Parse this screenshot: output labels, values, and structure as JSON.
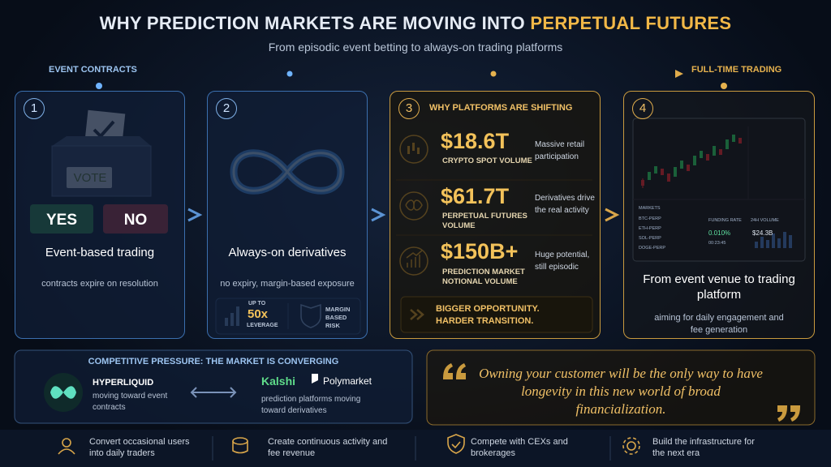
{
  "header": {
    "title_main": "WHY PREDICTION MARKETS ARE MOVING INTO",
    "title_highlight": "PERPETUAL FUTURES",
    "subtitle": "From episodic event betting to always-on trading platforms"
  },
  "timeline": {
    "start": "EVENT CONTRACTS",
    "end": "FULL-TIME TRADING"
  },
  "cards": [
    {
      "number": "1",
      "ballot": "VOTE",
      "yes": "YES",
      "no": "NO",
      "title": "Event-based trading",
      "description": "contracts expire on resolution"
    },
    {
      "number": "2",
      "title": "Always-on derivatives",
      "description": "no expiry, margin-based exposure",
      "badge_left": {
        "top": "UP TO",
        "value": "50x",
        "bottom": "LEVERAGE"
      },
      "badge_right": "MARGIN BASED RISK"
    },
    {
      "number": "3",
      "heading": "WHY PLATFORMS ARE SHIFTING",
      "stats": [
        {
          "value": "$18.6T",
          "label": "CRYPTO SPOT VOLUME",
          "note": "Massive retail participation"
        },
        {
          "value": "$61.7T",
          "label": "PERPETUAL FUTURES VOLUME",
          "note": "Derivatives drive the real activity"
        },
        {
          "value": "$150B+",
          "label": "PREDICTION MARKET NOTIONAL VOLUME",
          "note": "Huge potential, still episodic"
        }
      ],
      "footer": "BIGGER OPPORTUNITY. HARDER TRANSITION."
    },
    {
      "number": "4",
      "screen": {
        "markets": "MARKETS",
        "pairs": [
          "BTC-PERP",
          "ETH-PERP",
          "SOL-PERP",
          "DOGE-PERP"
        ],
        "funding_label": "FUNDING RATE",
        "funding_value": "0.010%",
        "timer": "00:23:45",
        "volume_label": "24H VOLUME",
        "volume_value": "$24.3B"
      },
      "title": "From event venue to trading platform",
      "description": "aiming for daily engagement and fee generation"
    }
  ],
  "competition": {
    "heading": "COMPETITIVE PRESSURE: THE MARKET IS CONVERGING",
    "left_name": "HYPERLIQUID",
    "left_text": "moving toward event contracts",
    "right_name_a": "Kalshi",
    "right_name_b": "Polymarket",
    "right_text": "prediction platforms moving toward derivatives"
  },
  "quote": "Owning your customer will be the only way to have longevity in this new world of broad financialization.",
  "footer": [
    "Convert occasional users into daily traders",
    "Create continuous activity and fee revenue",
    "Compete with CEXs and brokerages",
    "Build the infrastructure for the next era"
  ]
}
